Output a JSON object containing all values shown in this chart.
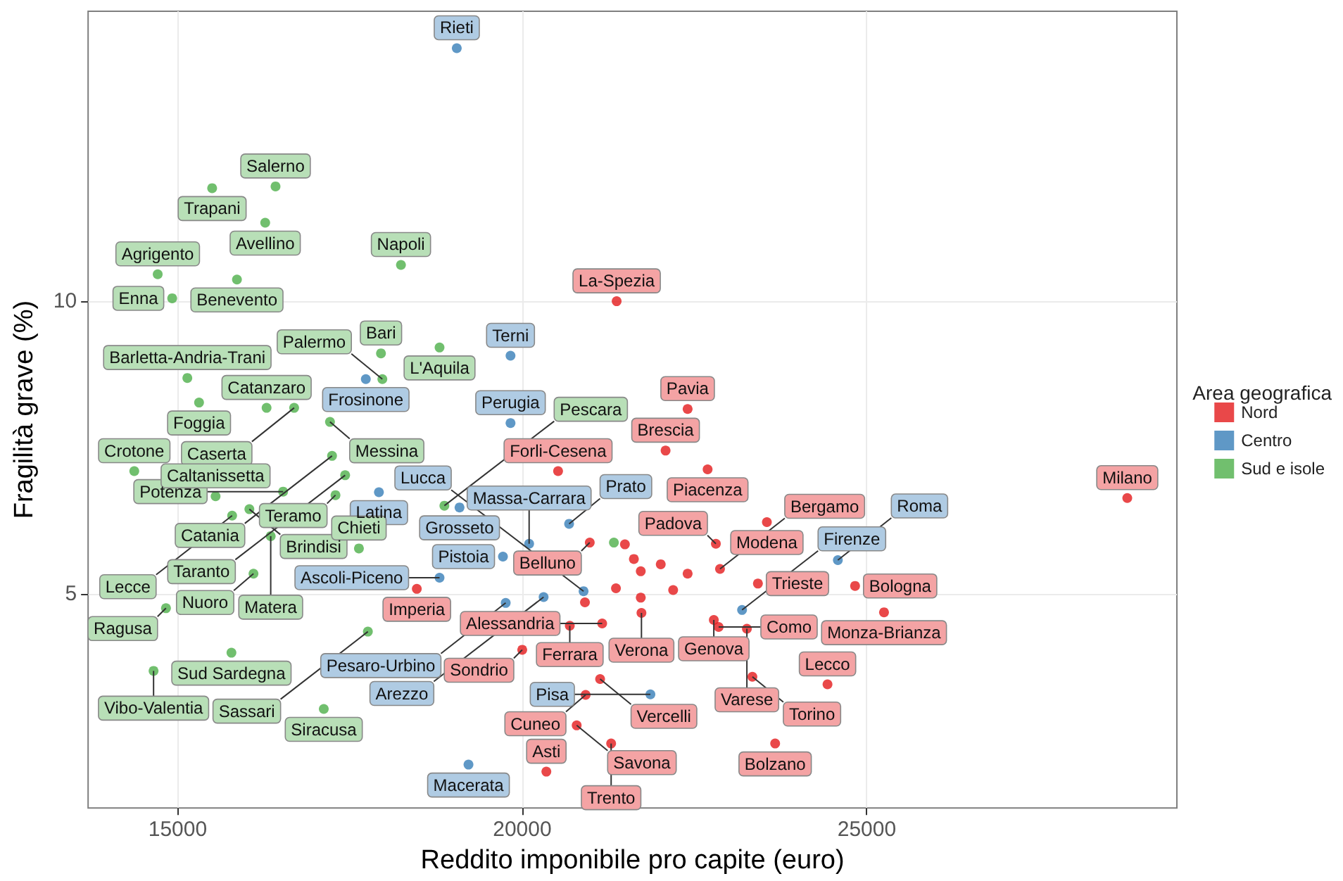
{
  "chart_data": {
    "type": "scatter",
    "xlabel": "Reddito imponibile pro capite (euro)",
    "ylabel": "Fragilità grave (%)",
    "legend_title": "Area geografica",
    "legend": "right",
    "grid": true,
    "marker": "circle",
    "xlim": [
      13700,
      29500
    ],
    "ylim": [
      1.35,
      14.95
    ],
    "xticks": [
      15000,
      20000,
      25000
    ],
    "yticks": [
      5,
      10
    ],
    "series": [
      {
        "name": "Nord",
        "color": "#e41a1c",
        "x": [
          21370,
          22400,
          22080,
          20520,
          22690,
          28780,
          24830,
          25250,
          24430,
          23550,
          22810,
          22870,
          23420,
          20980,
          21490,
          21620,
          22010,
          21720,
          22400,
          22190,
          21360,
          20910,
          21720,
          21730,
          22780,
          22850,
          23260,
          21160,
          20690,
          20000,
          21130,
          20920,
          20790,
          21290,
          20350,
          23340,
          23670,
          18470
        ],
        "values": [
          10.0,
          8.16,
          7.45,
          7.1,
          7.13,
          6.64,
          5.14,
          4.69,
          3.46,
          6.23,
          5.86,
          5.43,
          5.18,
          5.88,
          5.85,
          5.6,
          5.51,
          5.39,
          5.35,
          5.07,
          5.1,
          4.86,
          4.94,
          4.68,
          4.56,
          4.44,
          4.41,
          4.5,
          4.46,
          4.05,
          3.55,
          3.28,
          2.76,
          2.45,
          1.97,
          3.59,
          2.45,
          5.09
        ]
      },
      {
        "name": "Centro",
        "color": "#377eb8",
        "x": [
          19050,
          19830,
          19830,
          17730,
          17920,
          19090,
          20100,
          19720,
          18800,
          20310,
          20890,
          19760,
          20680,
          21860,
          23190,
          24580,
          19220
        ],
        "values": [
          14.32,
          9.07,
          7.92,
          8.67,
          6.74,
          6.48,
          5.86,
          5.64,
          5.28,
          4.95,
          5.05,
          4.85,
          6.2,
          3.29,
          4.73,
          5.58,
          2.09
        ]
      },
      {
        "name": "Sud e isole",
        "color": "#4daf4a",
        "x": [
          16420,
          15500,
          16270,
          14710,
          15860,
          18240,
          14920,
          17950,
          18800,
          17970,
          15140,
          15310,
          16290,
          16690,
          17210,
          17240,
          14370,
          17430,
          16530,
          17290,
          15550,
          16040,
          15790,
          16350,
          16100,
          14830,
          15780,
          14650,
          17120,
          17760,
          17630,
          18870,
          21330
        ],
        "values": [
          11.96,
          11.93,
          11.34,
          10.46,
          10.37,
          10.62,
          10.05,
          9.11,
          9.21,
          8.67,
          8.69,
          8.27,
          8.18,
          8.18,
          7.94,
          7.36,
          7.1,
          7.03,
          6.75,
          6.69,
          6.67,
          6.45,
          6.34,
          5.99,
          5.35,
          4.76,
          4.0,
          3.69,
          3.04,
          4.36,
          5.78,
          6.51,
          5.88
        ]
      }
    ],
    "annotations": [
      {
        "text": "La-Spezia",
        "x": 21370,
        "y": 10.0
      },
      {
        "text": "Pavia",
        "x": 22400,
        "y": 8.16
      },
      {
        "text": "Brescia",
        "x": 22080,
        "y": 7.45
      },
      {
        "text": "Forli-Cesena",
        "x": 20520,
        "y": 7.1
      },
      {
        "text": "Piacenza",
        "x": 22690,
        "y": 7.13
      },
      {
        "text": "Milano",
        "x": 28780,
        "y": 6.64
      },
      {
        "text": "Bologna",
        "x": 24830,
        "y": 5.14
      },
      {
        "text": "Monza-Brianza",
        "x": 25250,
        "y": 4.69
      },
      {
        "text": "Lecco",
        "x": 24430,
        "y": 3.46
      },
      {
        "text": "Modena",
        "x": 23550,
        "y": 6.23
      },
      {
        "text": "Padova",
        "x": 22810,
        "y": 5.86
      },
      {
        "text": "Bergamo",
        "x": 22870,
        "y": 5.43
      },
      {
        "text": "Trieste",
        "x": 23420,
        "y": 5.18
      },
      {
        "text": "Belluno",
        "x": 20980,
        "y": 5.88
      },
      {
        "text": "Verona",
        "x": 21730,
        "y": 4.68
      },
      {
        "text": "Genova",
        "x": 22780,
        "y": 4.56
      },
      {
        "text": "Como",
        "x": 22850,
        "y": 4.44
      },
      {
        "text": "Varese",
        "x": 23260,
        "y": 4.41
      },
      {
        "text": "Alessandria",
        "x": 21160,
        "y": 4.5
      },
      {
        "text": "Ferrara",
        "x": 20690,
        "y": 4.46
      },
      {
        "text": "Sondrio",
        "x": 20000,
        "y": 4.05
      },
      {
        "text": "Vercelli",
        "x": 21130,
        "y": 3.55
      },
      {
        "text": "Cuneo",
        "x": 20920,
        "y": 3.28
      },
      {
        "text": "Savona",
        "x": 20790,
        "y": 2.76
      },
      {
        "text": "Trento",
        "x": 21290,
        "y": 2.45
      },
      {
        "text": "Asti",
        "x": 20350,
        "y": 1.97
      },
      {
        "text": "Torino",
        "x": 23340,
        "y": 3.59
      },
      {
        "text": "Bolzano",
        "x": 23670,
        "y": 2.45
      },
      {
        "text": "Imperia",
        "x": 18470,
        "y": 5.09
      },
      {
        "text": "Rieti",
        "x": 19050,
        "y": 14.32
      },
      {
        "text": "Terni",
        "x": 19830,
        "y": 9.07
      },
      {
        "text": "Perugia",
        "x": 19830,
        "y": 7.92
      },
      {
        "text": "Frosinone",
        "x": 17730,
        "y": 8.67
      },
      {
        "text": "Latina",
        "x": 17920,
        "y": 6.74
      },
      {
        "text": "Grosseto",
        "x": 19090,
        "y": 6.48
      },
      {
        "text": "Massa-Carrara",
        "x": 20100,
        "y": 5.86
      },
      {
        "text": "Pistoia",
        "x": 19720,
        "y": 5.64
      },
      {
        "text": "Ascoli-Piceno",
        "x": 18800,
        "y": 5.28
      },
      {
        "text": "Arezzo",
        "x": 20310,
        "y": 4.95
      },
      {
        "text": "Lucca",
        "x": 20890,
        "y": 5.05
      },
      {
        "text": "Pesaro-Urbino",
        "x": 19760,
        "y": 4.85
      },
      {
        "text": "Prato",
        "x": 20680,
        "y": 6.2
      },
      {
        "text": "Pisa",
        "x": 21860,
        "y": 3.29
      },
      {
        "text": "Firenze",
        "x": 23190,
        "y": 4.73
      },
      {
        "text": "Roma",
        "x": 24580,
        "y": 5.58
      },
      {
        "text": "Macerata",
        "x": 19220,
        "y": 2.09
      },
      {
        "text": "Salerno",
        "x": 16420,
        "y": 11.96
      },
      {
        "text": "Trapani",
        "x": 15500,
        "y": 11.93
      },
      {
        "text": "Avellino",
        "x": 16270,
        "y": 11.34
      },
      {
        "text": "Agrigento",
        "x": 14710,
        "y": 10.46
      },
      {
        "text": "Benevento",
        "x": 15860,
        "y": 10.37
      },
      {
        "text": "Napoli",
        "x": 18240,
        "y": 10.62
      },
      {
        "text": "Enna",
        "x": 14920,
        "y": 10.05
      },
      {
        "text": "Bari",
        "x": 17950,
        "y": 9.11
      },
      {
        "text": "L'Aquila",
        "x": 18800,
        "y": 9.21
      },
      {
        "text": "Palermo",
        "x": 17970,
        "y": 8.67
      },
      {
        "text": "Barletta-Andria-Trani",
        "x": 15140,
        "y": 8.69
      },
      {
        "text": "Foggia",
        "x": 15310,
        "y": 8.27
      },
      {
        "text": "Catanzaro",
        "x": 16290,
        "y": 8.18
      },
      {
        "text": "Caserta",
        "x": 16690,
        "y": 8.18
      },
      {
        "text": "Messina",
        "x": 17210,
        "y": 7.94
      },
      {
        "text": "Catania",
        "x": 17240,
        "y": 7.36
      },
      {
        "text": "Crotone",
        "x": 14370,
        "y": 7.1
      },
      {
        "text": "Taranto",
        "x": 17430,
        "y": 7.03
      },
      {
        "text": "Potenza",
        "x": 16530,
        "y": 6.75
      },
      {
        "text": "Teramo",
        "x": 17290,
        "y": 6.69
      },
      {
        "text": "Caltanissetta",
        "x": 15550,
        "y": 6.67
      },
      {
        "text": "Brindisi",
        "x": 16040,
        "y": 6.45
      },
      {
        "text": "Lecce",
        "x": 15790,
        "y": 6.34
      },
      {
        "text": "Matera",
        "x": 16350,
        "y": 5.99
      },
      {
        "text": "Nuoro",
        "x": 16100,
        "y": 5.35
      },
      {
        "text": "Ragusa",
        "x": 14830,
        "y": 4.76
      },
      {
        "text": "Sud Sardegna",
        "x": 15780,
        "y": 4.0
      },
      {
        "text": "Vibo-Valentia",
        "x": 14650,
        "y": 3.69
      },
      {
        "text": "Siracusa",
        "x": 17120,
        "y": 3.04
      },
      {
        "text": "Sassari",
        "x": 17760,
        "y": 4.36
      },
      {
        "text": "Chieti",
        "x": 17630,
        "y": 5.78
      },
      {
        "text": "Pescara",
        "x": 18870,
        "y": 6.51
      }
    ]
  }
}
